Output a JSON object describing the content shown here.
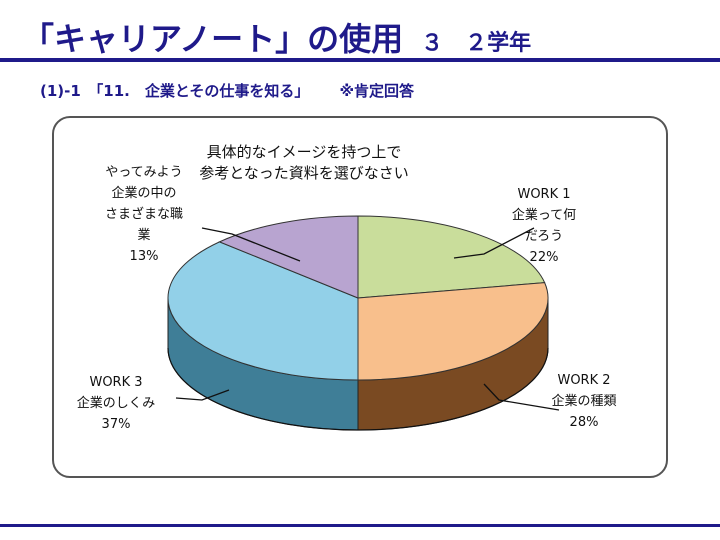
{
  "header": {
    "title": "「キャリアノート」の使用",
    "grade": "３　２学年",
    "subtitle": "(1)-1　「11.　企業とその仕事を知る」",
    "note": "※肯定回答"
  },
  "chart_data": {
    "type": "pie",
    "title_lines": [
      "具体的なイメージを持つ上で",
      "参考となった資料を選びなさい"
    ],
    "slices": [
      {
        "label_lines": [
          "WORK 1",
          "企業って何",
          "だろう"
        ],
        "percent_label": "22%",
        "value": 22,
        "color": "#c9dd9b",
        "side_color": "#6e8a3c"
      },
      {
        "label_lines": [
          "WORK 2",
          "企業の種類"
        ],
        "percent_label": "28%",
        "value": 28,
        "color": "#f8bf8c",
        "side_color": "#7a4a22"
      },
      {
        "label_lines": [
          "WORK 3",
          "企業のしくみ"
        ],
        "percent_label": "37%",
        "value": 37,
        "color": "#92d0e8",
        "side_color": "#3f7e97"
      },
      {
        "label_lines": [
          "やってみよう",
          "企業の中の",
          "さまざまな職",
          "業"
        ],
        "percent_label": "13%",
        "value": 13,
        "color": "#b8a4d0",
        "side_color": "#5e4c7e"
      }
    ]
  }
}
